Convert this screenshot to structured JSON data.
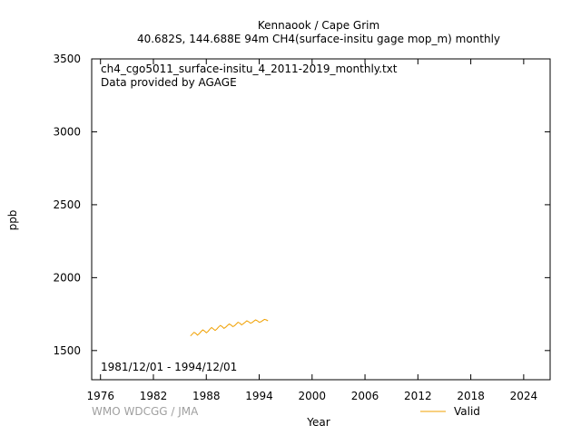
{
  "chart_data": {
    "type": "line",
    "title": "Kennaook / Cape Grim",
    "subtitle": "40.682S, 144.688E 94m    CH4(surface-insitu gage mop_m) monthly",
    "xlabel": "Year",
    "ylabel": "ppb",
    "xlim": [
      1975,
      2027
    ],
    "ylim": [
      1300,
      3500
    ],
    "x_ticks": [
      "1976",
      "1982",
      "1988",
      "1994",
      "2000",
      "2006",
      "2012",
      "2018",
      "2024"
    ],
    "y_ticks": [
      "1500",
      "2000",
      "2500",
      "3000",
      "3500"
    ],
    "annotations": {
      "file": "ch4_cgo5011_surface-insitu_4_2011-2019_monthly.txt",
      "provider": "Data provided by AGAGE",
      "period": "1981/12/01 - 1994/12/01",
      "credit": "WMO WDCGG / JMA"
    },
    "legend": {
      "position": "bottom-right"
    },
    "grid": false,
    "series": [
      {
        "name": "Valid",
        "color": "#f0a000",
        "x": [
          1986.2,
          1986.4,
          1986.6,
          1986.8,
          1987.0,
          1987.2,
          1987.4,
          1987.6,
          1987.8,
          1988.0,
          1988.2,
          1988.4,
          1988.6,
          1988.8,
          1989.0,
          1989.2,
          1989.4,
          1989.6,
          1989.8,
          1990.0,
          1990.2,
          1990.4,
          1990.6,
          1990.8,
          1991.0,
          1991.2,
          1991.4,
          1991.6,
          1991.8,
          1992.0,
          1992.2,
          1992.4,
          1992.6,
          1992.8,
          1993.0,
          1993.2,
          1993.4,
          1993.6,
          1993.8,
          1994.0,
          1994.2,
          1994.4,
          1994.6,
          1994.8,
          1995.0
        ],
        "y": [
          1600,
          1612,
          1625,
          1618,
          1606,
          1616,
          1630,
          1642,
          1634,
          1622,
          1632,
          1646,
          1658,
          1648,
          1638,
          1648,
          1662,
          1672,
          1664,
          1652,
          1660,
          1672,
          1682,
          1676,
          1664,
          1670,
          1682,
          1694,
          1688,
          1676,
          1684,
          1694,
          1704,
          1698,
          1688,
          1692,
          1702,
          1710,
          1704,
          1694,
          1698,
          1706,
          1714,
          1710,
          1704
        ]
      }
    ]
  }
}
